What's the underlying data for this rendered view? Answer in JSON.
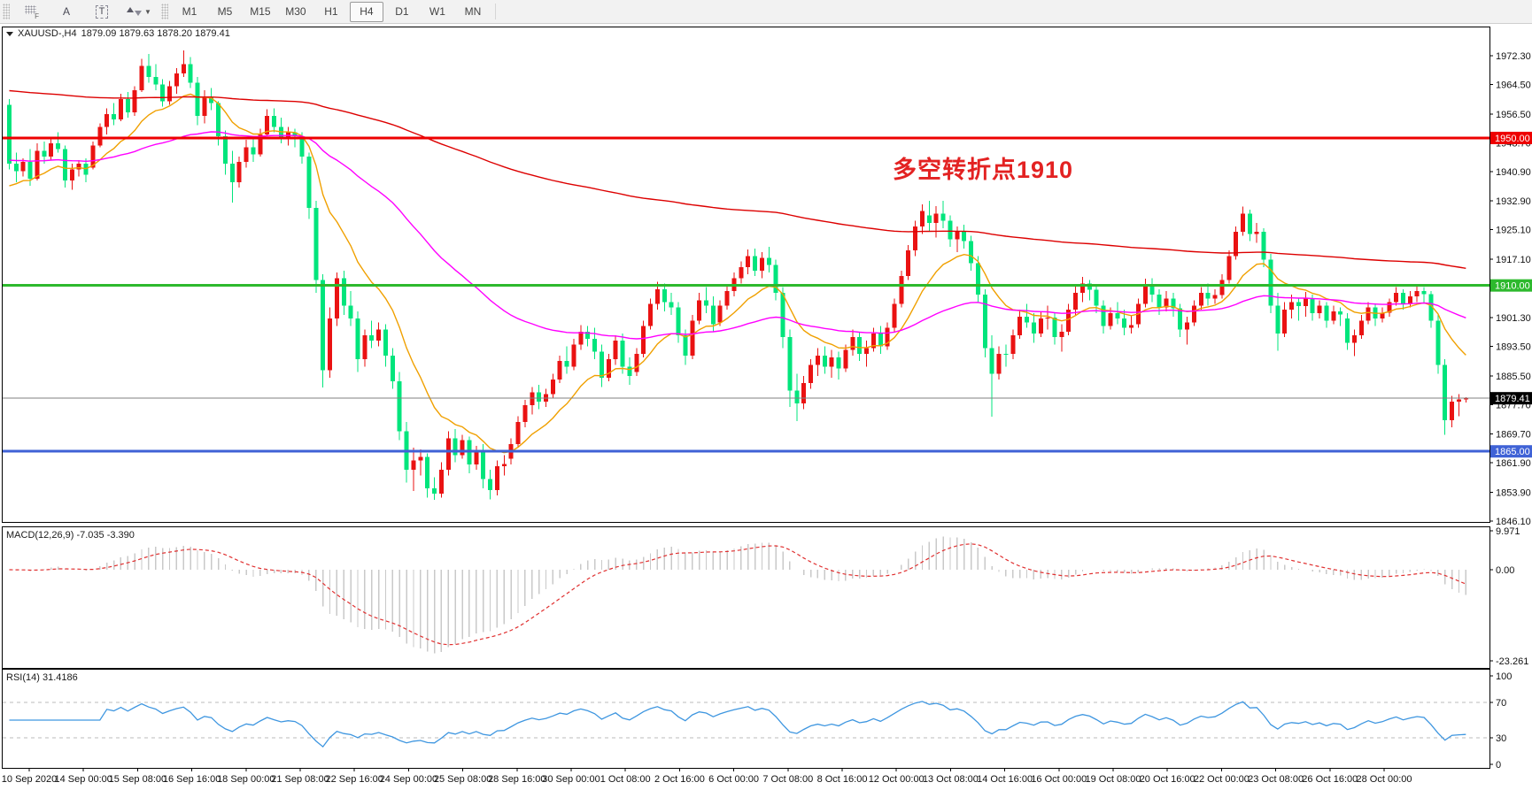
{
  "toolbar": {
    "grid_f_label": "F",
    "annotate_label": "A",
    "textbox_label": "T",
    "timeframes": [
      "M1",
      "M5",
      "M15",
      "M30",
      "H1",
      "H4",
      "D1",
      "W1",
      "MN"
    ],
    "selected_timeframe": "H4"
  },
  "chart": {
    "symbol_title": "XAUUSD-,H4",
    "ohlc_display": "1879.09 1879.63 1878.20 1879.41",
    "annotation_text": "多空转折点1910",
    "current_price_label": "1879.41",
    "current_price": 1879.41,
    "y_axis_labels": [
      "1972.30",
      "1964.50",
      "1956.50",
      "1948.70",
      "1940.90",
      "1932.90",
      "1925.10",
      "1917.10",
      "1909.30",
      "1901.30",
      "1893.50",
      "1885.50",
      "1877.70",
      "1869.70",
      "1861.90",
      "1853.90",
      "1846.10"
    ],
    "hlines": [
      {
        "value": 1950.0,
        "label": "1950.00",
        "color": "#ee0000",
        "width": 3
      },
      {
        "value": 1910.0,
        "label": "1910.00",
        "color": "#2db92d",
        "width": 3
      },
      {
        "value": 1865.0,
        "label": "1865.00",
        "color": "#3f62d6",
        "width": 3
      }
    ]
  },
  "chart_data": {
    "type": "candlestick",
    "symbol": "XAUUSD-",
    "timeframe": "H4",
    "title": "XAUUSD-,H4 1879.09 1879.63 1878.20 1879.41",
    "y_range": [
      1846.1,
      1972.3
    ],
    "x_labels": [
      "10 Sep 2020",
      "14 Sep 00:00",
      "15 Sep 08:00",
      "16 Sep 16:00",
      "18 Sep 00:00",
      "21 Sep 08:00",
      "22 Sep 16:00",
      "24 Sep 00:00",
      "25 Sep 08:00",
      "28 Sep 16:00",
      "30 Sep 00:00",
      "1 Oct 08:00",
      "2 Oct 16:00",
      "6 Oct 00:00",
      "7 Oct 08:00",
      "8 Oct 16:00",
      "12 Oct 00:00",
      "13 Oct 08:00",
      "14 Oct 16:00",
      "16 Oct 00:00",
      "19 Oct 08:00",
      "20 Oct 16:00",
      "22 Oct 00:00",
      "23 Oct 08:00",
      "26 Oct 16:00",
      "28 Oct 00:00"
    ],
    "candles": [
      [
        1959,
        1960.5,
        1941.5,
        1943
      ],
      [
        1943,
        1946,
        1938,
        1941
      ],
      [
        1941,
        1944.5,
        1939.5,
        1943.5
      ],
      [
        1943.5,
        1947,
        1937,
        1939
      ],
      [
        1939,
        1948.5,
        1938.5,
        1946.5
      ],
      [
        1946.5,
        1949,
        1943,
        1945
      ],
      [
        1945,
        1950,
        1944,
        1948.5
      ],
      [
        1948.5,
        1951.5,
        1946,
        1947
      ],
      [
        1947,
        1948,
        1936.5,
        1938.5
      ],
      [
        1938.5,
        1943,
        1936,
        1941.5
      ],
      [
        1941.5,
        1944,
        1939.5,
        1943
      ],
      [
        1943,
        1944.5,
        1938,
        1940
      ],
      [
        1942,
        1949,
        1941.5,
        1948
      ],
      [
        1948,
        1954,
        1947.5,
        1953
      ],
      [
        1953,
        1958,
        1951,
        1956.5
      ],
      [
        1956.5,
        1959.5,
        1953.5,
        1955
      ],
      [
        1955,
        1962,
        1954.5,
        1960.5
      ],
      [
        1960.5,
        1962.5,
        1955.5,
        1957
      ],
      [
        1957,
        1964,
        1956,
        1963
      ],
      [
        1963,
        1971.5,
        1962.5,
        1969.5
      ],
      [
        1969.5,
        1972.8,
        1965,
        1966.5
      ],
      [
        1966.5,
        1970,
        1963,
        1964.5
      ],
      [
        1964.5,
        1966,
        1958.5,
        1960
      ],
      [
        1960,
        1965.5,
        1959,
        1964
      ],
      [
        1964,
        1969,
        1962,
        1967.5
      ],
      [
        1967.5,
        1973.7,
        1966.5,
        1970
      ],
      [
        1970,
        1972,
        1963.5,
        1965
      ],
      [
        1965,
        1966.5,
        1953.5,
        1956
      ],
      [
        1956,
        1963,
        1954,
        1961
      ],
      [
        1961,
        1963.5,
        1957.5,
        1959.5
      ],
      [
        1959.5,
        1960,
        1948,
        1950.5
      ],
      [
        1950.5,
        1952,
        1940,
        1943
      ],
      [
        1943,
        1946.5,
        1932.5,
        1938
      ],
      [
        1938,
        1945,
        1936.5,
        1943.5
      ],
      [
        1943.5,
        1949.5,
        1942,
        1947.5
      ],
      [
        1947.5,
        1950,
        1943.5,
        1945.5
      ],
      [
        1945.5,
        1952.5,
        1945,
        1951
      ],
      [
        1951,
        1957.8,
        1950.5,
        1956
      ],
      [
        1956,
        1958,
        1951.5,
        1953
      ],
      [
        1953,
        1955.5,
        1948.5,
        1950
      ],
      [
        1950,
        1953,
        1948,
        1951.5
      ],
      [
        1951.5,
        1952.5,
        1947.5,
        1950.5
      ],
      [
        1950.5,
        1951.5,
        1943,
        1945
      ],
      [
        1945,
        1946,
        1928,
        1931
      ],
      [
        1931,
        1933,
        1908,
        1911.5
      ],
      [
        1911.5,
        1913,
        1882.3,
        1887
      ],
      [
        1887,
        1904,
        1885,
        1901
      ],
      [
        1901,
        1913.5,
        1899,
        1912
      ],
      [
        1912,
        1914,
        1902,
        1904.5
      ],
      [
        1904.5,
        1908.5,
        1899,
        1901
      ],
      [
        1901,
        1903,
        1886.5,
        1890
      ],
      [
        1890,
        1898,
        1888,
        1896.5
      ],
      [
        1896.5,
        1900.5,
        1893,
        1895
      ],
      [
        1895,
        1900,
        1893.5,
        1898
      ],
      [
        1898,
        1899.5,
        1888,
        1891
      ],
      [
        1891,
        1893,
        1882,
        1884
      ],
      [
        1884,
        1886.5,
        1868,
        1870.5
      ],
      [
        1870.5,
        1873,
        1856.5,
        1860
      ],
      [
        1860,
        1866,
        1854.2,
        1862.5
      ],
      [
        1862.5,
        1865.5,
        1858.5,
        1863.5
      ],
      [
        1863.5,
        1864.5,
        1852.5,
        1855
      ],
      [
        1855,
        1858,
        1851.8,
        1853.5
      ],
      [
        1853.5,
        1862,
        1852.5,
        1860
      ],
      [
        1860,
        1870.5,
        1858.5,
        1868.5
      ],
      [
        1868.5,
        1871,
        1862,
        1864
      ],
      [
        1864,
        1869.5,
        1863,
        1868
      ],
      [
        1868,
        1869,
        1859,
        1861.5
      ],
      [
        1861.5,
        1866.5,
        1860,
        1865
      ],
      [
        1865,
        1867,
        1855,
        1857.5
      ],
      [
        1857.5,
        1860,
        1852,
        1854.5
      ],
      [
        1854.5,
        1862.5,
        1853,
        1861
      ],
      [
        1861,
        1864,
        1858.5,
        1861.6
      ],
      [
        1863,
        1868.5,
        1861.5,
        1867
      ],
      [
        1867,
        1874.5,
        1866,
        1873
      ],
      [
        1873,
        1879,
        1871.5,
        1877.5
      ],
      [
        1877.5,
        1882.5,
        1875,
        1881
      ],
      [
        1881,
        1883,
        1876.5,
        1878.5
      ],
      [
        1878.5,
        1882,
        1877,
        1880.5
      ],
      [
        1880.5,
        1886,
        1879.5,
        1884.5
      ],
      [
        1884.5,
        1891,
        1883.5,
        1889.5
      ],
      [
        1889.5,
        1893.5,
        1886,
        1888
      ],
      [
        1888,
        1895.5,
        1887,
        1894
      ],
      [
        1894,
        1899.3,
        1892.5,
        1897.5
      ],
      [
        1897.5,
        1899,
        1893.5,
        1895.5
      ],
      [
        1895.5,
        1898.5,
        1890,
        1892
      ],
      [
        1892,
        1894,
        1882.5,
        1885
      ],
      [
        1885,
        1891.5,
        1884,
        1890
      ],
      [
        1890,
        1896.5,
        1888.5,
        1895
      ],
      [
        1895,
        1897,
        1886,
        1888
      ],
      [
        1888,
        1890.5,
        1883,
        1885.5
      ],
      [
        1886.5,
        1893,
        1885.5,
        1891.5
      ],
      [
        1891.5,
        1900.5,
        1890.5,
        1899
      ],
      [
        1899,
        1906.5,
        1898,
        1905
      ],
      [
        1905,
        1911,
        1903.5,
        1909
      ],
      [
        1909,
        1910.5,
        1903,
        1905.5
      ],
      [
        1905.5,
        1908,
        1902,
        1904
      ],
      [
        1904,
        1905.5,
        1894.5,
        1896.5
      ],
      [
        1896.5,
        1898,
        1888.5,
        1891
      ],
      [
        1891,
        1902,
        1890,
        1900.5
      ],
      [
        1900.5,
        1908,
        1899.5,
        1906
      ],
      [
        1906,
        1909.5,
        1902.5,
        1904.5
      ],
      [
        1904.5,
        1907,
        1897.5,
        1899.5
      ],
      [
        1900,
        1906,
        1899,
        1904.5
      ],
      [
        1904.5,
        1910,
        1903.5,
        1908.5
      ],
      [
        1908.5,
        1913.5,
        1907,
        1912
      ],
      [
        1912,
        1916.5,
        1910.5,
        1915
      ],
      [
        1915,
        1919.8,
        1913,
        1918
      ],
      [
        1918,
        1920,
        1912.5,
        1914
      ],
      [
        1914,
        1919,
        1912,
        1917.5
      ],
      [
        1917.5,
        1920.5,
        1913.5,
        1915.5
      ],
      [
        1915.5,
        1917,
        1906,
        1908
      ],
      [
        1908,
        1909.5,
        1893,
        1896
      ],
      [
        1896,
        1898,
        1877,
        1881.5
      ],
      [
        1881.5,
        1886,
        1873.2,
        1878
      ],
      [
        1878,
        1885.5,
        1876.5,
        1883.5
      ],
      [
        1883.5,
        1890,
        1882,
        1888.5
      ],
      [
        1888.5,
        1893,
        1885.5,
        1891
      ],
      [
        1891,
        1893.5,
        1886,
        1888
      ],
      [
        1888,
        1892.5,
        1885,
        1890.5
      ],
      [
        1890.5,
        1892,
        1884.5,
        1887.5
      ],
      [
        1887.5,
        1894,
        1886.5,
        1892.5
      ],
      [
        1892.5,
        1898,
        1891,
        1896
      ],
      [
        1896,
        1897.5,
        1889.5,
        1891.5
      ],
      [
        1891.5,
        1895,
        1888,
        1893
      ],
      [
        1893,
        1898.5,
        1892,
        1897
      ],
      [
        1897,
        1899,
        1891.5,
        1893.5
      ],
      [
        1893.5,
        1900,
        1892.5,
        1898.5
      ],
      [
        1898.5,
        1906.5,
        1897.5,
        1905
      ],
      [
        1905,
        1914,
        1904,
        1912.5
      ],
      [
        1912.5,
        1921,
        1911.5,
        1919.5
      ],
      [
        1919.5,
        1927.5,
        1918,
        1926
      ],
      [
        1926,
        1932,
        1924,
        1930.2
      ],
      [
        1929,
        1933,
        1924.5,
        1927
      ],
      [
        1927,
        1931.5,
        1923,
        1929.5
      ],
      [
        1929.5,
        1932.9,
        1925.5,
        1927.5
      ],
      [
        1927.5,
        1929,
        1920.5,
        1922.5
      ],
      [
        1922.5,
        1926,
        1919,
        1924.5
      ],
      [
        1924.5,
        1926.5,
        1920,
        1922
      ],
      [
        1922,
        1923.5,
        1914,
        1916
      ],
      [
        1916,
        1918,
        1905.5,
        1907.5
      ],
      [
        1907.5,
        1909,
        1890.5,
        1893
      ],
      [
        1893,
        1896.5,
        1874.4,
        1886
      ],
      [
        1886,
        1893.5,
        1884.5,
        1891.5
      ],
      [
        1891.5,
        1894,
        1888,
        1891.4
      ],
      [
        1891.4,
        1898,
        1890,
        1896.5
      ],
      [
        1896.5,
        1903.5,
        1895.5,
        1901.5
      ],
      [
        1901.5,
        1905,
        1898.5,
        1900
      ],
      [
        1900,
        1902.5,
        1894.5,
        1897
      ],
      [
        1897,
        1903,
        1896,
        1901
      ],
      [
        1901,
        1904.5,
        1898,
        1901.3
      ],
      [
        1901.3,
        1902.5,
        1894,
        1896
      ],
      [
        1896,
        1899.5,
        1892,
        1897.5
      ],
      [
        1897.5,
        1905,
        1896.5,
        1903.5
      ],
      [
        1903.5,
        1910,
        1902,
        1908
      ],
      [
        1908,
        1912.3,
        1905.5,
        1910.5
      ],
      [
        1910.5,
        1911.5,
        1906,
        1908.8
      ],
      [
        1908.8,
        1910,
        1902.5,
        1904.5
      ],
      [
        1904.5,
        1906,
        1897,
        1899
      ],
      [
        1899,
        1904,
        1898,
        1902.5
      ],
      [
        1902.5,
        1905.5,
        1899.5,
        1901
      ],
      [
        1901,
        1903.5,
        1896.5,
        1898.5
      ],
      [
        1898.5,
        1902,
        1897,
        1899.3
      ],
      [
        1899.5,
        1906.5,
        1898.5,
        1905
      ],
      [
        1905,
        1911.8,
        1904,
        1910
      ],
      [
        1910,
        1912,
        1905.5,
        1907.5
      ],
      [
        1907.5,
        1909,
        1902,
        1904
      ],
      [
        1904,
        1908.5,
        1903,
        1906.5
      ],
      [
        1906.5,
        1908,
        1901.5,
        1903.8
      ],
      [
        1903.8,
        1905,
        1896,
        1898
      ],
      [
        1898,
        1901.5,
        1894,
        1900
      ],
      [
        1900,
        1906,
        1899,
        1904.5
      ],
      [
        1904.5,
        1909.5,
        1903.5,
        1908
      ],
      [
        1908,
        1910.5,
        1904.5,
        1906.5
      ],
      [
        1906.5,
        1909,
        1905,
        1907.4
      ],
      [
        1907.4,
        1913,
        1906.5,
        1911.5
      ],
      [
        1911.5,
        1919.5,
        1910.5,
        1918
      ],
      [
        1918,
        1926,
        1917,
        1924.5
      ],
      [
        1924.5,
        1931.4,
        1923.5,
        1929.5
      ],
      [
        1929.5,
        1930.5,
        1922,
        1924
      ],
      [
        1924,
        1927,
        1921.5,
        1924.6
      ],
      [
        1924.6,
        1925.5,
        1915,
        1917
      ],
      [
        1917,
        1918.5,
        1902.5,
        1904.5
      ],
      [
        1904.5,
        1908,
        1892.3,
        1897
      ],
      [
        1897,
        1905.5,
        1896,
        1903.5
      ],
      [
        1903.5,
        1907.5,
        1901,
        1905.5
      ],
      [
        1905.5,
        1906.5,
        1900.5,
        1904.4
      ],
      [
        1904.4,
        1908.2,
        1901.5,
        1906.5
      ],
      [
        1906.5,
        1907.5,
        1900.5,
        1902.5
      ],
      [
        1902.5,
        1906,
        1901,
        1904.5
      ],
      [
        1904.5,
        1905.5,
        1898.5,
        1900.5
      ],
      [
        1900.5,
        1904.5,
        1899.5,
        1903
      ],
      [
        1903,
        1904,
        1899,
        1902.1
      ],
      [
        1901,
        1902.5,
        1892.5,
        1894.5
      ],
      [
        1894.5,
        1898,
        1890.8,
        1896.5
      ],
      [
        1896.5,
        1902,
        1895.5,
        1900.5
      ],
      [
        1900.5,
        1905.5,
        1899.5,
        1904
      ],
      [
        1904,
        1905,
        1899,
        1901
      ],
      [
        1901,
        1904,
        1900,
        1902.6
      ],
      [
        1902.6,
        1906.5,
        1901.5,
        1905.5
      ],
      [
        1905.5,
        1909.5,
        1904.5,
        1908
      ],
      [
        1908,
        1909,
        1903.5,
        1905
      ],
      [
        1905,
        1908.5,
        1904,
        1907
      ],
      [
        1907,
        1909.8,
        1905.5,
        1908.5
      ],
      [
        1908.5,
        1909.5,
        1905,
        1907.7
      ],
      [
        1907.7,
        1908.5,
        1898.5,
        1900.5
      ],
      [
        1900.5,
        1902,
        1886,
        1888.5
      ],
      [
        1888.5,
        1890,
        1869.5,
        1873.5
      ],
      [
        1873.5,
        1880,
        1871.5,
        1878.5
      ],
      [
        1878.5,
        1880.5,
        1874.5,
        1879.1
      ],
      [
        1879.09,
        1879.63,
        1878.2,
        1879.41
      ]
    ],
    "moving_averages": [
      {
        "name": "ema-fast",
        "period": 13,
        "seed": 1936,
        "color": "#f0a000"
      },
      {
        "name": "ema-medium",
        "period": 60,
        "seed": 1944,
        "color": "#ff00ff"
      },
      {
        "name": "ema-slow",
        "period": 240,
        "seed": 1963,
        "color": "#dd0000"
      }
    ],
    "indicators": [
      {
        "name": "MACD",
        "header": "MACD(12,26,9) -7.035 -3.390",
        "params": [
          12,
          26,
          9
        ],
        "scale_labels": [
          "9.971",
          "0.00",
          "-23.261"
        ],
        "scale_values": [
          9.971,
          0,
          -23.261
        ]
      },
      {
        "name": "RSI",
        "header": "RSI(14) 31.4186",
        "params": [
          14
        ],
        "levels": [
          70,
          30
        ],
        "scale_labels": [
          "100",
          "70",
          "30",
          "0"
        ],
        "scale_values": [
          100,
          70,
          30,
          0
        ]
      }
    ]
  },
  "colors": {
    "bull": "#ea1212",
    "bear": "#00e57c",
    "macd_hist": "#c9c9c9",
    "macd_signal": "#e03030",
    "rsi_line": "#3e96e0",
    "annotation": "#e32222",
    "current_line": "#808080",
    "current_label_bg": "#000000",
    "axis_text": "#111111"
  }
}
